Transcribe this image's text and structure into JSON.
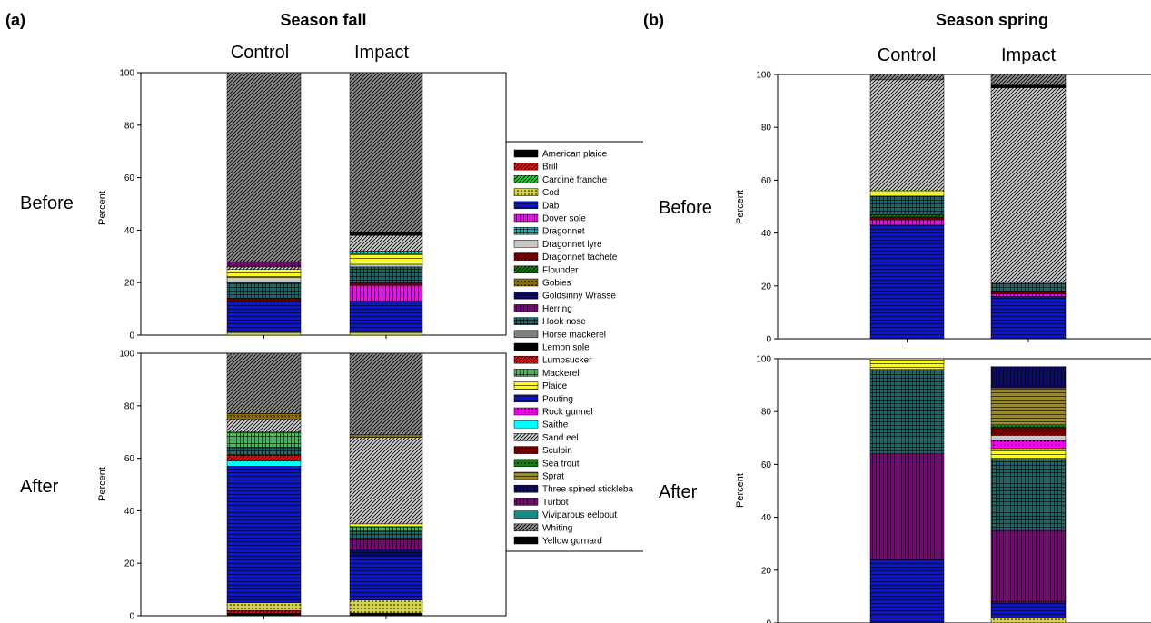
{
  "panels": [
    {
      "tag": "(a)",
      "title": "Season fall",
      "columns": [
        "Control",
        "Impact"
      ],
      "rows": [
        "Before",
        "After"
      ]
    },
    {
      "tag": "(b)",
      "title": "Season spring",
      "columns": [
        "Control",
        "Impact"
      ],
      "rows": [
        "Before",
        "After"
      ]
    }
  ],
  "ylabel": "Percent",
  "legend": [
    {
      "name": "American plaice",
      "color": "#000000",
      "pattern": "solid"
    },
    {
      "name": "Brill",
      "color": "#e31a1c",
      "pattern": "hatch"
    },
    {
      "name": "Cardine franche",
      "color": "#2ecc40",
      "pattern": "hatch"
    },
    {
      "name": "Cod",
      "color": "#d4d44a",
      "pattern": "dots"
    },
    {
      "name": "Dab",
      "color": "#0a14d8",
      "pattern": "hlines"
    },
    {
      "name": "Dover sole",
      "color": "#ff00ff",
      "pattern": "vlines"
    },
    {
      "name": "Dragonnet",
      "color": "#00c8c8",
      "pattern": "grid"
    },
    {
      "name": "Dragonnet lyre",
      "color": "#c8c8c8",
      "pattern": "solid"
    },
    {
      "name": "Dragonnet tachete",
      "color": "#8b0000",
      "pattern": "hatch"
    },
    {
      "name": "Flounder",
      "color": "#1a7a1a",
      "pattern": "hatch"
    },
    {
      "name": "Gobies",
      "color": "#8a6d00",
      "pattern": "dots"
    },
    {
      "name": "Goldsinny Wrasse",
      "color": "#0a0a6e",
      "pattern": "hlines"
    },
    {
      "name": "Herring",
      "color": "#800080",
      "pattern": "vlines"
    },
    {
      "name": "Hook nose",
      "color": "#0e7070",
      "pattern": "grid"
    },
    {
      "name": "Horse mackerel",
      "color": "#808080",
      "pattern": "solid"
    },
    {
      "name": "Lemon sole",
      "color": "#000000",
      "pattern": "solid"
    },
    {
      "name": "Lumpsucker",
      "color": "#e31a1c",
      "pattern": "hatch"
    },
    {
      "name": "Mackerel",
      "color": "#2ecc40",
      "pattern": "grid"
    },
    {
      "name": "Plaice",
      "color": "#ffff00",
      "pattern": "hlines"
    },
    {
      "name": "Pouting",
      "color": "#0a14d8",
      "pattern": "hlines"
    },
    {
      "name": "Rock gunnel",
      "color": "#ff00ff",
      "pattern": "dots"
    },
    {
      "name": "Saithe",
      "color": "#00ffff",
      "pattern": "solid"
    },
    {
      "name": "Sand eel",
      "color": "#cfcfcf",
      "pattern": "hatch"
    },
    {
      "name": "Sculpin",
      "color": "#8b0000",
      "pattern": "hatch"
    },
    {
      "name": "Sea trout",
      "color": "#1a7a1a",
      "pattern": "dots"
    },
    {
      "name": "Sprat",
      "color": "#9a8a20",
      "pattern": "hlines"
    },
    {
      "name": "Three spined stickleba",
      "color": "#0a0a6e",
      "pattern": "vlines"
    },
    {
      "name": "Turbot",
      "color": "#800080",
      "pattern": "vlines"
    },
    {
      "name": "Viviparous eelpout",
      "color": "#158a8a",
      "pattern": "solid"
    },
    {
      "name": "Whiting",
      "color": "#8c8c8c",
      "pattern": "hatch"
    },
    {
      "name": "Yellow gurnard",
      "color": "#000000",
      "pattern": "solid"
    }
  ],
  "chart_data": [
    {
      "type": "bar",
      "title": "Season fall",
      "subplot": "Before",
      "stacked": true,
      "categories": [
        "Control",
        "Impact"
      ],
      "ylabel": "Percent",
      "ylim": [
        0,
        100
      ],
      "series": [
        {
          "name": "Cod",
          "values": [
            1,
            1
          ]
        },
        {
          "name": "Dab",
          "values": [
            12,
            12
          ]
        },
        {
          "name": "Dover sole",
          "values": [
            0,
            6
          ]
        },
        {
          "name": "Sculpin",
          "values": [
            1,
            1
          ]
        },
        {
          "name": "Hook nose",
          "values": [
            6,
            6
          ]
        },
        {
          "name": "Dragonnet lyre",
          "values": [
            2,
            1
          ]
        },
        {
          "name": "Plaice",
          "values": [
            3,
            4
          ]
        },
        {
          "name": "Dragonnet",
          "values": [
            0,
            1
          ]
        },
        {
          "name": "Sand eel",
          "values": [
            1,
            6
          ]
        },
        {
          "name": "Herring",
          "values": [
            2,
            0
          ]
        },
        {
          "name": "Lemon sole",
          "values": [
            0,
            1
          ]
        },
        {
          "name": "Whiting",
          "values": [
            72,
            61
          ]
        }
      ]
    },
    {
      "type": "bar",
      "title": "Season fall",
      "subplot": "After",
      "stacked": true,
      "categories": [
        "Control",
        "Impact"
      ],
      "ylabel": "Percent",
      "ylim": [
        0,
        100
      ],
      "series": [
        {
          "name": "Lemon sole",
          "values": [
            1,
            1
          ]
        },
        {
          "name": "Brill",
          "values": [
            1,
            0
          ]
        },
        {
          "name": "Cod",
          "values": [
            3,
            5
          ]
        },
        {
          "name": "Dab",
          "values": [
            52,
            17
          ]
        },
        {
          "name": "Goldsinny Wrasse",
          "values": [
            0,
            2
          ]
        },
        {
          "name": "Herring",
          "values": [
            0,
            4
          ]
        },
        {
          "name": "Saithe",
          "values": [
            2,
            0
          ]
        },
        {
          "name": "Lumpsucker",
          "values": [
            2,
            0
          ]
        },
        {
          "name": "Hook nose",
          "values": [
            3,
            3
          ]
        },
        {
          "name": "Mackerel",
          "values": [
            6,
            2
          ]
        },
        {
          "name": "Plaice",
          "values": [
            0,
            1
          ]
        },
        {
          "name": "Sand eel",
          "values": [
            5,
            33
          ]
        },
        {
          "name": "Gobies",
          "values": [
            2,
            1
          ]
        },
        {
          "name": "Whiting",
          "values": [
            23,
            31
          ]
        }
      ]
    },
    {
      "type": "bar",
      "title": "Season spring",
      "subplot": "Before",
      "stacked": true,
      "categories": [
        "Control",
        "Impact"
      ],
      "ylabel": "Percent",
      "ylim": [
        0,
        100
      ],
      "series": [
        {
          "name": "Dab",
          "values": [
            43,
            16
          ]
        },
        {
          "name": "Dover sole",
          "values": [
            2,
            1
          ]
        },
        {
          "name": "Sculpin",
          "values": [
            1,
            1
          ]
        },
        {
          "name": "Flounder",
          "values": [
            1,
            0
          ]
        },
        {
          "name": "Hook nose",
          "values": [
            7,
            3
          ]
        },
        {
          "name": "Plaice",
          "values": [
            2,
            0
          ]
        },
        {
          "name": "Sand eel",
          "values": [
            42,
            74
          ]
        },
        {
          "name": "Lemon sole",
          "values": [
            0,
            1
          ]
        },
        {
          "name": "Whiting",
          "values": [
            2,
            4
          ]
        }
      ]
    },
    {
      "type": "bar",
      "title": "Season spring",
      "subplot": "After",
      "stacked": true,
      "categories": [
        "Control",
        "Impact"
      ],
      "ylabel": "Percent",
      "ylim": [
        0,
        100
      ],
      "series": [
        {
          "name": "Cod",
          "values": [
            0,
            2
          ]
        },
        {
          "name": "Dab",
          "values": [
            24,
            6
          ]
        },
        {
          "name": "Herring",
          "values": [
            40,
            27
          ]
        },
        {
          "name": "Hook nose",
          "values": [
            32,
            27
          ]
        },
        {
          "name": "Plaice",
          "values": [
            4,
            4
          ]
        },
        {
          "name": "Rock gunnel",
          "values": [
            0,
            3
          ]
        },
        {
          "name": "Dragonnet lyre",
          "values": [
            0,
            2
          ]
        },
        {
          "name": "Sculpin",
          "values": [
            0,
            3
          ]
        },
        {
          "name": "Sea trout",
          "values": [
            0,
            1
          ]
        },
        {
          "name": "Sprat",
          "values": [
            0,
            14
          ]
        },
        {
          "name": "Three spined stickleba",
          "values": [
            0,
            8
          ]
        }
      ]
    }
  ]
}
